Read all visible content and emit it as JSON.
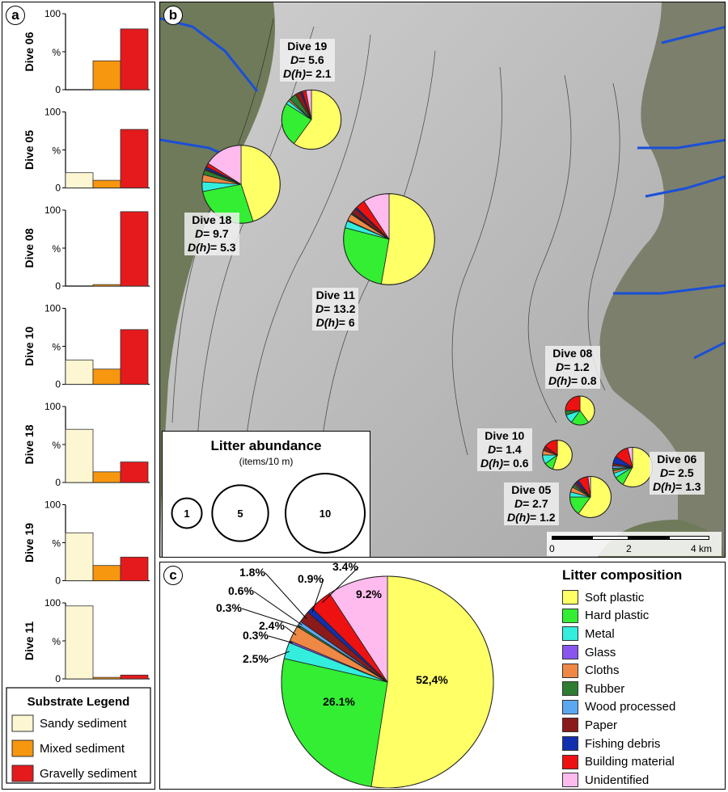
{
  "panel_labels": {
    "a": "a",
    "b": "b",
    "c": "c"
  },
  "chart_data": [
    {
      "type": "bar",
      "panel": "a",
      "ylabel": "%",
      "ylim": [
        0,
        100
      ],
      "yticks": [
        "0",
        "%",
        "100"
      ],
      "categories": [
        "Sandy sediment",
        "Mixed sediment",
        "Gravelly sediment"
      ],
      "colors": [
        "#fcf6d2",
        "#f7960f",
        "#e41a1c"
      ],
      "series": [
        {
          "name": "Dive 06",
          "values": [
            0,
            38,
            80
          ]
        },
        {
          "name": "Dive 05",
          "values": [
            20,
            10,
            77
          ]
        },
        {
          "name": "Dive 08",
          "values": [
            0,
            2,
            98
          ]
        },
        {
          "name": "Dive 10",
          "values": [
            32,
            20,
            72
          ]
        },
        {
          "name": "Dive 18",
          "values": [
            70,
            14,
            27
          ]
        },
        {
          "name": "Dive 19",
          "values": [
            63,
            20,
            31
          ]
        },
        {
          "name": "Dive 11",
          "values": [
            96,
            2,
            5
          ]
        }
      ],
      "legend_title": "Substrate Legend"
    },
    {
      "type": "pie",
      "panel": "b",
      "title": "Litter abundance",
      "subtitle": "(items/10 m)",
      "size_legend": [
        1,
        5,
        10
      ],
      "scale_labels": [
        "0",
        "2",
        "4 km"
      ],
      "dives": [
        {
          "name": "Dive 19",
          "D": "5.6",
          "Dh": "2.1",
          "abundance": 5.6,
          "values": [
            60,
            24,
            2,
            0,
            1,
            4,
            0,
            3,
            1,
            2,
            3
          ]
        },
        {
          "name": "Dive 18",
          "D": "9.7",
          "Dh": "5.3",
          "abundance": 9.7,
          "values": [
            45,
            27,
            4,
            0,
            3,
            2,
            0,
            0.5,
            1,
            1.5,
            16
          ]
        },
        {
          "name": "Dive 11",
          "D": "13.2",
          "Dh": "6",
          "abundance": 13.2,
          "values": [
            52.4,
            26.1,
            2.5,
            0.3,
            2.4,
            0.3,
            0.3,
            1.8,
            0.6,
            3.4,
            9.2
          ]
        },
        {
          "name": "Dive 08",
          "D": "1.2",
          "Dh": "0.8",
          "abundance": 1.2,
          "values": [
            40,
            20,
            10,
            0,
            0,
            5,
            0,
            0,
            0,
            25,
            0
          ]
        },
        {
          "name": "Dive 10",
          "D": "1.4",
          "Dh": "0.6",
          "abundance": 1.4,
          "values": [
            55,
            10,
            10,
            0,
            5,
            0,
            0,
            5,
            0,
            15,
            0
          ]
        },
        {
          "name": "Dive 05",
          "D": "2.7",
          "Dh": "1.2",
          "abundance": 2.7,
          "values": [
            60,
            15,
            4,
            0,
            4,
            2,
            1,
            2,
            2,
            8,
            2
          ]
        },
        {
          "name": "Dive 06",
          "D": "2.5",
          "Dh": "1.3",
          "abundance": 2.5,
          "values": [
            58,
            8,
            4,
            0,
            2,
            2,
            2,
            2,
            6,
            12,
            4
          ]
        }
      ]
    },
    {
      "type": "pie",
      "panel": "c",
      "title": "Litter composition",
      "categories": [
        "Soft plastic",
        "Hard plastic",
        "Metal",
        "Glass",
        "Cloths",
        "Rubber",
        "Wood processed",
        "Paper",
        "Fishing debris",
        "Building material",
        "Unidentified"
      ],
      "colors": [
        "#ffff66",
        "#33ee33",
        "#33eedd",
        "#8855ee",
        "#ee8844",
        "#2e7d32",
        "#5ba7f0",
        "#8b1a1a",
        "#1030b0",
        "#ee1111",
        "#ffbbee"
      ],
      "values": [
        52.4,
        26.1,
        2.5,
        0.3,
        2.4,
        0.3,
        0.6,
        1.8,
        0.9,
        3.4,
        9.2
      ],
      "labels": [
        "52,4%",
        "26.1%",
        "2.5%",
        "0.3%",
        "2.4%",
        "0.3%",
        "0.6%",
        "1.8%",
        "0.9%",
        "3.4%",
        "9.2%"
      ]
    }
  ]
}
